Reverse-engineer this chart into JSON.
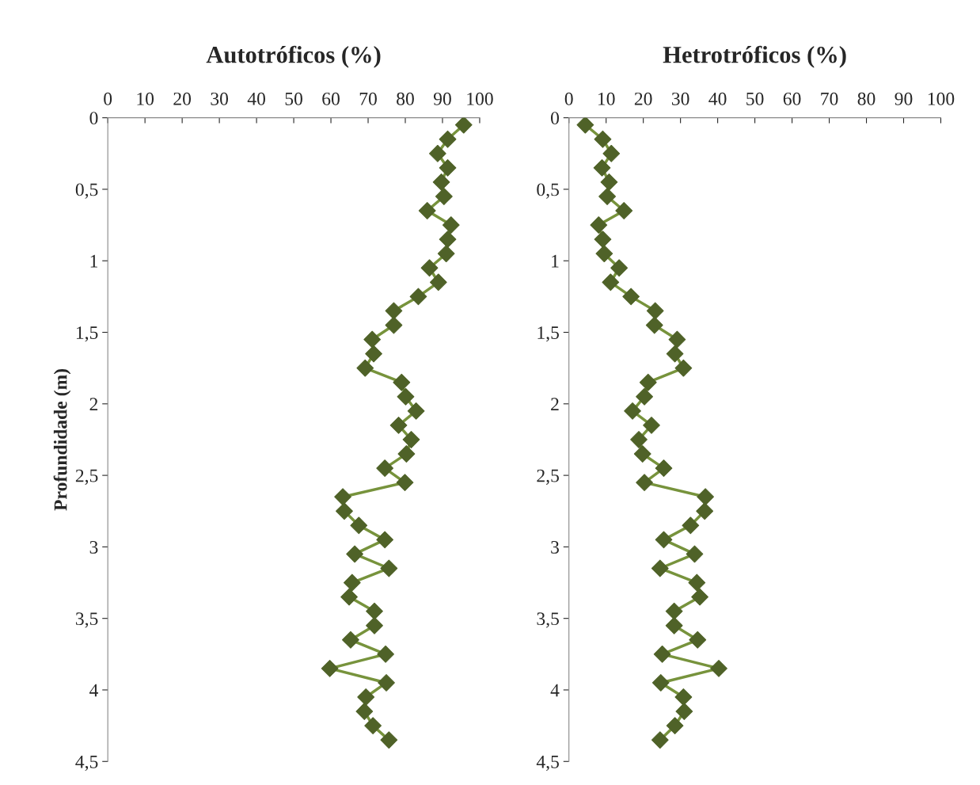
{
  "chart_data": [
    {
      "type": "line",
      "orientation": "horizontal",
      "title": "Autotróficos (%)",
      "ylabel": "Profundidade (m)",
      "marker": "diamond",
      "line_style": "solid",
      "grid": false,
      "legend": false,
      "x": [
        0.05,
        0.15,
        0.25,
        0.35,
        0.45,
        0.55,
        0.65,
        0.75,
        0.85,
        0.95,
        1.05,
        1.15,
        1.25,
        1.35,
        1.45,
        1.55,
        1.65,
        1.75,
        1.85,
        1.95,
        2.05,
        2.15,
        2.25,
        2.35,
        2.45,
        2.55,
        2.65,
        2.75,
        2.85,
        2.95,
        3.05,
        3.15,
        3.25,
        3.35,
        3.45,
        3.55,
        3.65,
        3.75,
        3.85,
        3.95,
        4.05,
        4.15,
        4.25,
        4.35
      ],
      "series": [
        {
          "color": "#4f6228",
          "values": [
            95.7,
            91.4,
            88.7,
            91.4,
            89.7,
            90.4,
            85.9,
            92.3,
            91.4,
            91.0,
            86.5,
            88.9,
            83.5,
            76.9,
            76.9,
            71.1,
            71.5,
            69.2,
            79.0,
            80.1,
            82.9,
            78.2,
            81.6,
            80.3,
            74.5,
            79.9,
            63.2,
            63.6,
            67.5,
            74.5,
            66.4,
            75.6,
            65.7,
            64.9,
            71.7,
            71.7,
            65.3,
            74.7,
            59.7,
            74.9,
            69.4,
            69.0,
            71.3,
            75.6
          ]
        }
      ],
      "xlim": [
        0,
        100
      ],
      "xticks": [
        0,
        10,
        20,
        30,
        40,
        50,
        60,
        70,
        80,
        90,
        100
      ],
      "ylim": [
        4.5,
        0
      ],
      "yticks": [
        0,
        {
          "value": 0.5,
          "label": "0,5"
        },
        1,
        {
          "value": 1.5,
          "label": "1,5"
        },
        2,
        {
          "value": 2.5,
          "label": "2,5"
        },
        3,
        {
          "value": 3.5,
          "label": "3,5"
        },
        4,
        {
          "value": 4.5,
          "label": "4,5"
        }
      ]
    },
    {
      "type": "line",
      "orientation": "horizontal",
      "title": "Hetrotróficos (%)",
      "marker": "diamond",
      "line_style": "solid",
      "grid": false,
      "legend": false,
      "x": [
        0.05,
        0.15,
        0.25,
        0.35,
        0.45,
        0.55,
        0.65,
        0.75,
        0.85,
        0.95,
        1.05,
        1.15,
        1.25,
        1.35,
        1.45,
        1.55,
        1.65,
        1.75,
        1.85,
        1.95,
        2.05,
        2.15,
        2.25,
        2.35,
        2.45,
        2.55,
        2.65,
        2.75,
        2.85,
        2.95,
        3.05,
        3.15,
        3.25,
        3.35,
        3.45,
        3.55,
        3.65,
        3.75,
        3.85,
        3.95,
        4.05,
        4.15,
        4.25,
        4.35
      ],
      "series": [
        {
          "color": "#4f6228",
          "values": [
            4.4,
            9.1,
            11.4,
            8.9,
            10.8,
            10.3,
            14.8,
            8.0,
            9.1,
            9.5,
            13.5,
            11.2,
            16.7,
            23.2,
            23.0,
            29.1,
            28.5,
            30.8,
            21.3,
            20.3,
            17.1,
            22.2,
            18.8,
            19.8,
            25.5,
            20.3,
            36.7,
            36.5,
            32.7,
            25.5,
            33.8,
            24.5,
            34.4,
            35.2,
            28.3,
            28.3,
            34.6,
            25.1,
            40.3,
            24.7,
            30.8,
            31.0,
            28.5,
            24.5
          ]
        }
      ],
      "xlim": [
        0,
        100
      ],
      "xticks": [
        0,
        10,
        20,
        30,
        40,
        50,
        60,
        70,
        80,
        90,
        100
      ],
      "ylim": [
        4.5,
        0
      ],
      "yticks": [
        0,
        {
          "value": 0.5,
          "label": "0,5"
        },
        1,
        {
          "value": 1.5,
          "label": "1,5"
        },
        2,
        {
          "value": 2.5,
          "label": "2,5"
        },
        3,
        {
          "value": 3.5,
          "label": "3,5"
        },
        4,
        {
          "value": 4.5,
          "label": "4,5"
        }
      ]
    }
  ]
}
